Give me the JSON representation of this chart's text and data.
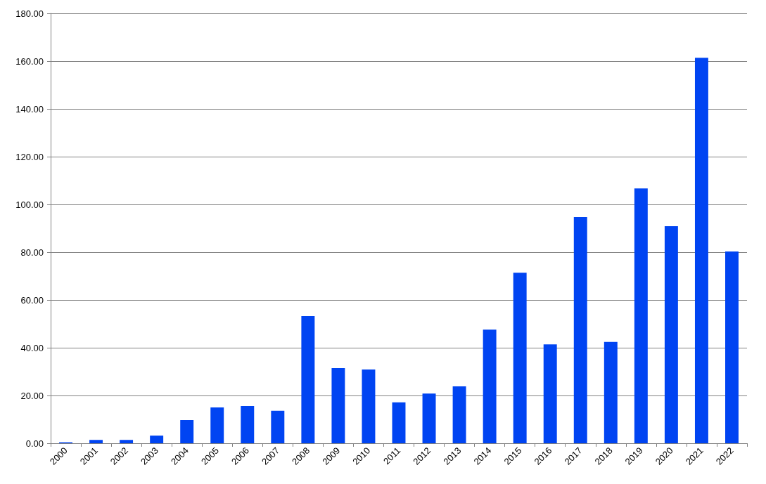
{
  "chart_data": {
    "type": "bar",
    "categories": [
      "2000",
      "2001",
      "2002",
      "2003",
      "2004",
      "2005",
      "2006",
      "2007",
      "2008",
      "2009",
      "2010",
      "2011",
      "2012",
      "2013",
      "2014",
      "2015",
      "2016",
      "2017",
      "2018",
      "2019",
      "2020",
      "2021",
      "2022"
    ],
    "values": [
      0.4,
      1.4,
      1.4,
      3.2,
      9.7,
      15.0,
      15.6,
      13.6,
      53.2,
      31.5,
      30.9,
      17.1,
      20.8,
      23.8,
      47.6,
      71.4,
      41.4,
      94.7,
      42.4,
      106.7,
      90.9,
      161.4,
      80.3
    ],
    "color": "#0044f2",
    "ylim": [
      0,
      180
    ],
    "yticks": [
      {
        "value": 0,
        "label": "0.00"
      },
      {
        "value": 20,
        "label": "20.00"
      },
      {
        "value": 40,
        "label": "40.00"
      },
      {
        "value": 60,
        "label": "60.00"
      },
      {
        "value": 80,
        "label": "80.00"
      },
      {
        "value": 100,
        "label": "100.00"
      },
      {
        "value": 120,
        "label": "120.00"
      },
      {
        "value": 140,
        "label": "140.00"
      },
      {
        "value": 160,
        "label": "160.00"
      },
      {
        "value": 180,
        "label": "180.00"
      }
    ],
    "grid": "y"
  }
}
